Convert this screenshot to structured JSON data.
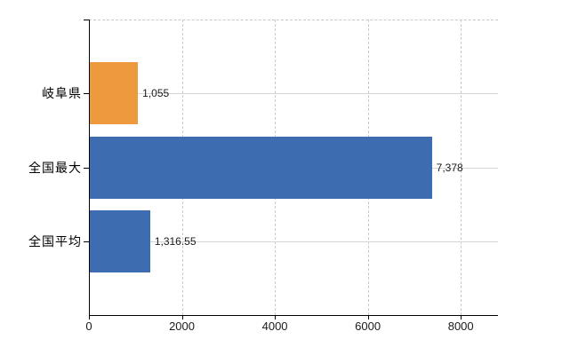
{
  "chart_data": {
    "type": "bar",
    "orientation": "horizontal",
    "title": "",
    "xlabel": "",
    "ylabel": "",
    "categories": [
      "岐阜県",
      "全国最大",
      "全国平均"
    ],
    "values": [
      1055,
      7378,
      1316.55
    ],
    "value_labels": [
      "1,055",
      "7,378",
      "1,316.55"
    ],
    "series": [
      {
        "name": "岐阜県",
        "value": 1055,
        "color": "#ec9a3d"
      },
      {
        "name": "全国最大",
        "value": 7378,
        "color": "#3d6cb0"
      },
      {
        "name": "全国平均",
        "value": 1316.55,
        "color": "#3d6cb0"
      }
    ],
    "bar_colors": [
      "#ec9a3d",
      "#3d6cb0",
      "#3d6cb0"
    ],
    "xlim": [
      0,
      8800
    ],
    "x_ticks": [
      0,
      2000,
      4000,
      6000,
      8000
    ],
    "x_tick_labels": [
      "0",
      "2000",
      "4000",
      "6000",
      "8000"
    ],
    "legend": "none",
    "grid": {
      "vertical": "dashed",
      "horizontal": "solid-at-category-centers",
      "top_border": "dashed"
    }
  },
  "colors": {
    "highlight_bar": "#ec9a3d",
    "default_bar": "#3d6cb0",
    "axis": "#000000",
    "gridline": "#cccccc",
    "text": "#1a1a1a",
    "background": "#ffffff"
  }
}
